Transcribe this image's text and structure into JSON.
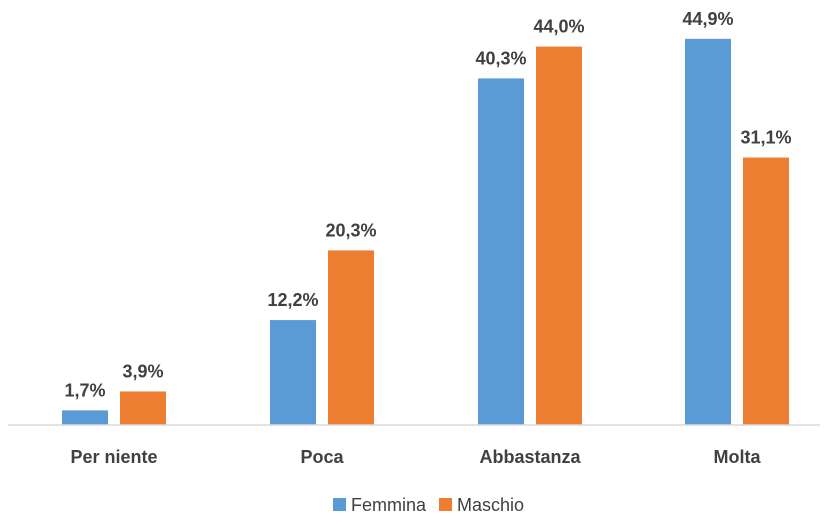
{
  "chart_data": {
    "type": "bar",
    "categories": [
      "Per niente",
      "Poca",
      "Abbastanza",
      "Molta"
    ],
    "series": [
      {
        "name": "Femmina",
        "values": [
          1.7,
          12.2,
          40.3,
          44.9
        ],
        "labels": [
          "1,7%",
          "12,2%",
          "40,3%",
          "44,9%"
        ],
        "color": "#5B9BD5"
      },
      {
        "name": "Maschio",
        "values": [
          3.9,
          20.3,
          44.0,
          31.1
        ],
        "labels": [
          "3,9%",
          "20,3%",
          "44,0%",
          "31,1%"
        ],
        "color": "#ED7D31"
      }
    ],
    "unit": "%",
    "ylim": [
      0,
      48
    ],
    "grid": false,
    "legend_position": "bottom",
    "axis_color": "#D9D9D9",
    "text_color": "#404040"
  }
}
